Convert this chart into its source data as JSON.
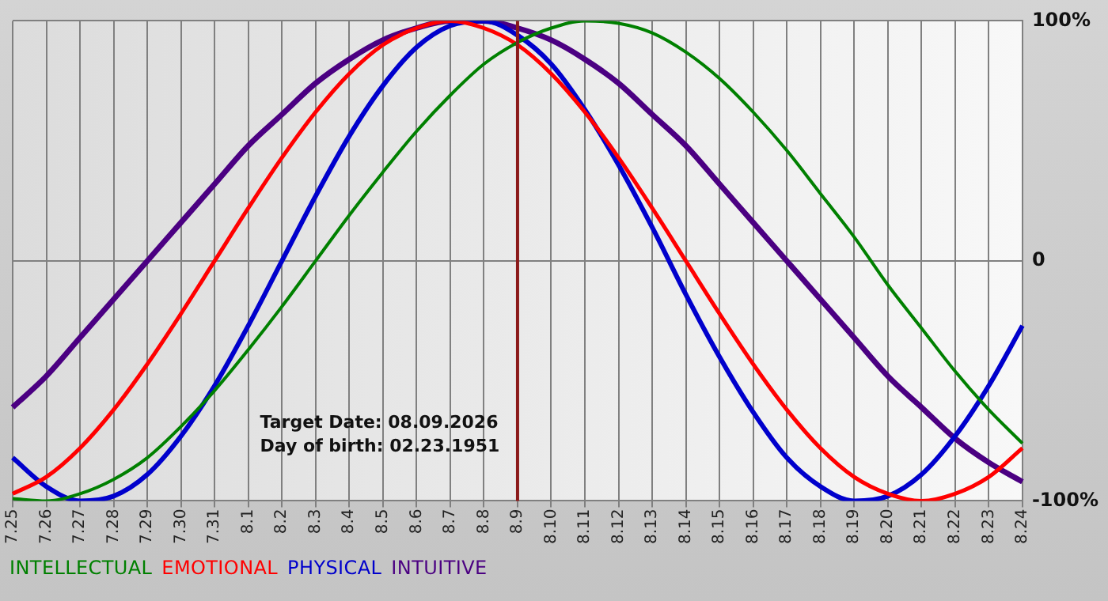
{
  "chart_data": {
    "type": "line",
    "categories": [
      "7.25",
      "7.26",
      "7.27",
      "7.28",
      "7.29",
      "7.30",
      "7.31",
      "8.1",
      "8.2",
      "8.3",
      "8.4",
      "8.5",
      "8.6",
      "8.7",
      "8.8",
      "8.9",
      "8.10",
      "8.11",
      "8.12",
      "8.13",
      "8.14",
      "8.15",
      "8.16",
      "8.17",
      "8.18",
      "8.19",
      "8.20",
      "8.21",
      "8.22",
      "8.23",
      "8.24"
    ],
    "series": [
      {
        "name": "INTELLECTUAL",
        "color": "#008000",
        "values": [
          -99,
          -100,
          -97,
          -91,
          -82,
          -69,
          -54,
          -37,
          -19,
          0,
          19,
          37,
          54,
          69,
          82,
          91,
          97,
          100,
          99,
          95,
          87,
          76,
          62,
          46,
          28,
          10,
          -10,
          -28,
          -46,
          -62,
          -76
        ]
      },
      {
        "name": "EMOTIONAL",
        "color": "#ff0000",
        "values": [
          -97,
          -90,
          -78,
          -62,
          -43,
          -22,
          0,
          22,
          43,
          62,
          78,
          90,
          97,
          100,
          97,
          90,
          78,
          62,
          43,
          22,
          0,
          -22,
          -43,
          -62,
          -78,
          -90,
          -97,
          -100,
          -97,
          -90,
          -78
        ]
      },
      {
        "name": "PHYSICAL",
        "color": "#0000cc",
        "values": [
          -82,
          -94,
          -100,
          -98,
          -89,
          -73,
          -52,
          -27,
          0,
          27,
          52,
          73,
          89,
          98,
          100,
          94,
          82,
          63,
          40,
          14,
          -14,
          -40,
          -63,
          -82,
          -94,
          -100,
          -98,
          -89,
          -73,
          -52,
          -27
        ]
      },
      {
        "name": "INTUITIVE",
        "color": "#4b0082",
        "values": [
          -61,
          -48,
          -32,
          -16,
          0,
          16,
          32,
          48,
          61,
          74,
          84,
          92,
          97,
          100,
          100,
          97,
          92,
          84,
          74,
          61,
          48,
          32,
          16,
          0,
          -16,
          -32,
          -48,
          -61,
          -74,
          -84,
          -92
        ]
      }
    ],
    "ylim": [
      -100,
      100
    ],
    "yticks": [
      {
        "value": -100,
        "label": "-100%"
      },
      0,
      {
        "value": 100,
        "label": "100%"
      }
    ],
    "grid": true,
    "legend": "bottom left",
    "marker": "none",
    "line_style": "solid",
    "ref_lines": [
      {
        "axis": "x",
        "value": "8.9",
        "color": "#8b1a1a"
      }
    ],
    "annotations": [
      "Target Date: 08.09.2026",
      "Day of birth: 02.23.1951"
    ]
  }
}
